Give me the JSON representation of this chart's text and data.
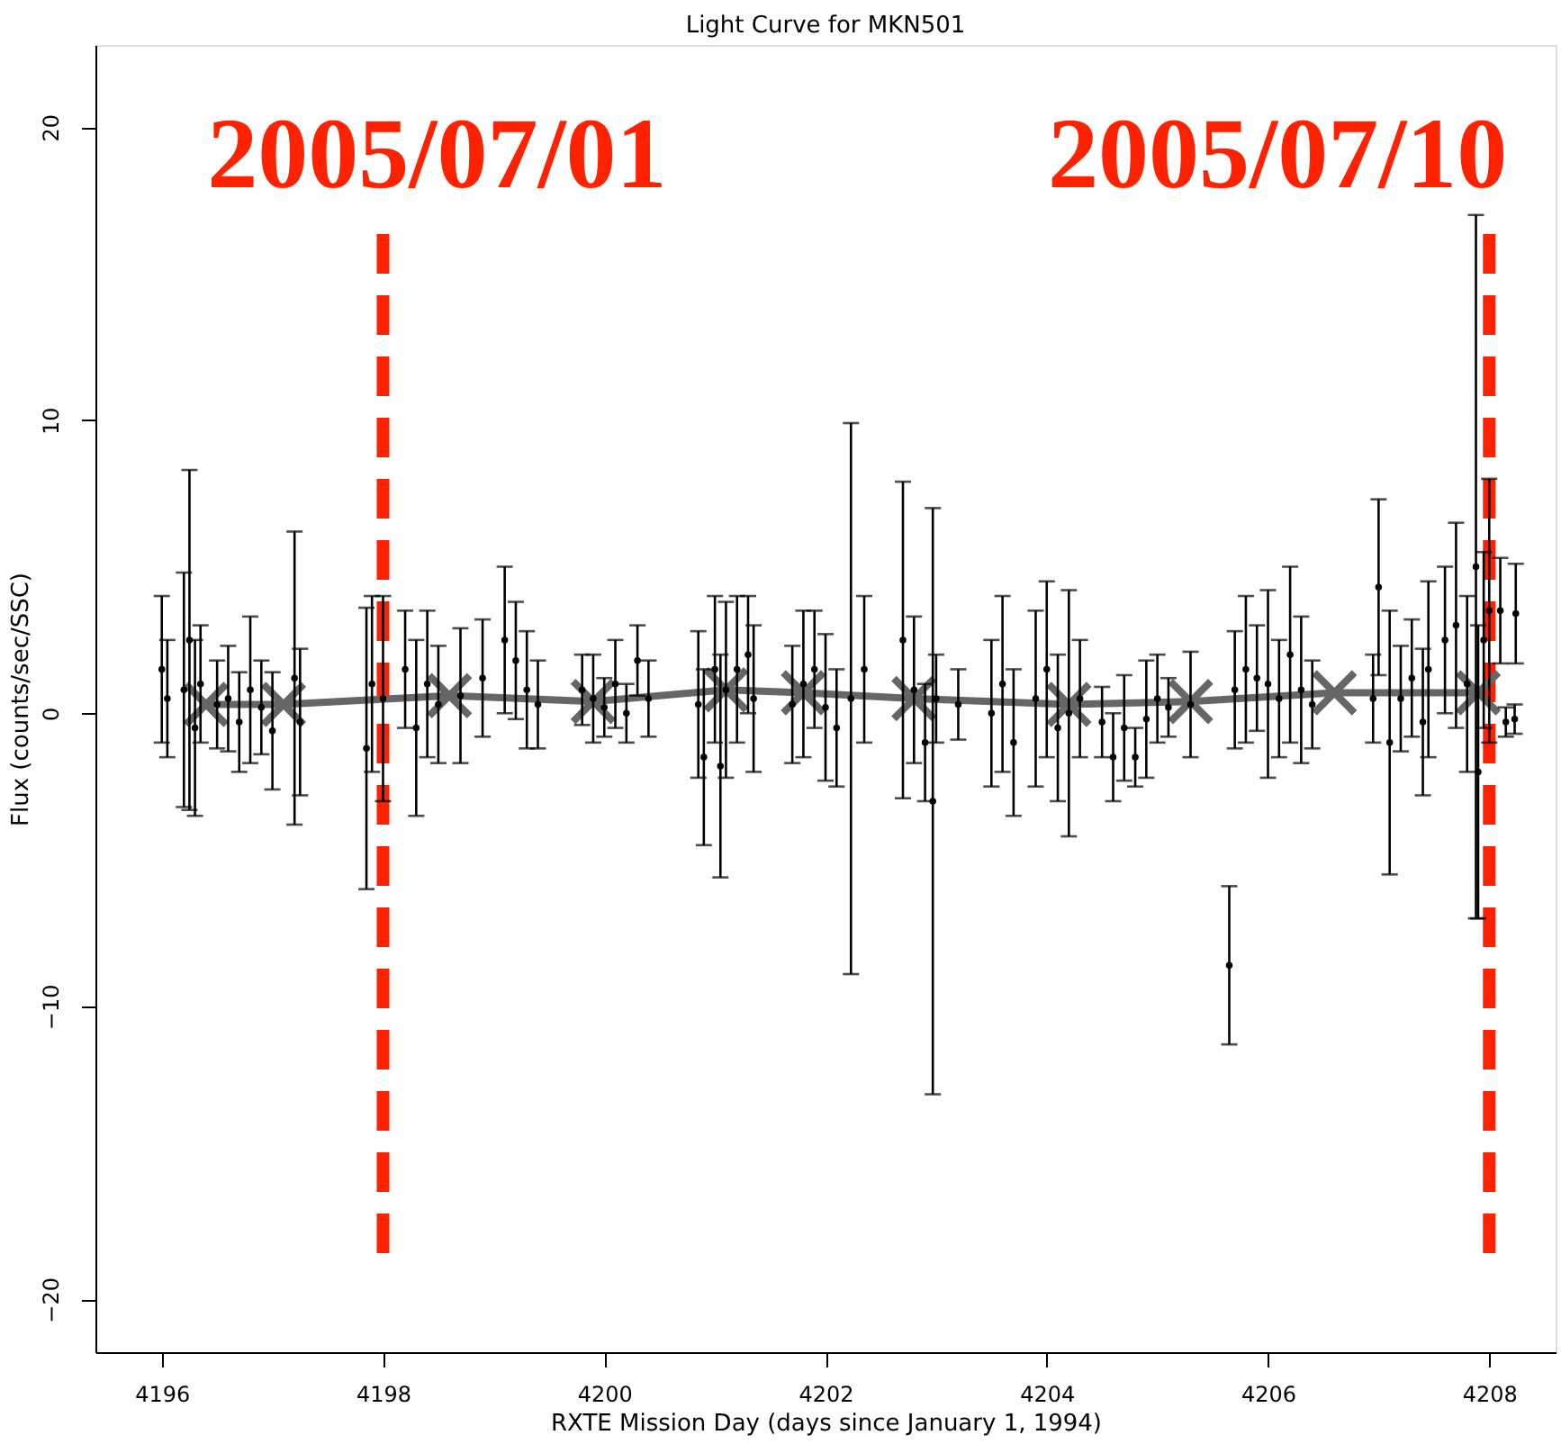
{
  "chart_data": {
    "type": "scatter",
    "title": "Light Curve for MKN501",
    "xlabel": "RXTE Mission Day (days since January 1, 1994)",
    "ylabel": "Flux (counts/sec/SSC)",
    "xlim": [
      4195.4,
      4208.6
    ],
    "ylim": [
      -21.8,
      22.8
    ],
    "xticks": [
      4196,
      4198,
      4200,
      4202,
      4204,
      4206,
      4208
    ],
    "yticks": [
      -20,
      -10,
      0,
      10,
      20
    ],
    "grid": false,
    "annotations": [
      "2005/07/01",
      "2005/07/10"
    ],
    "series": [
      {
        "color": "#000000",
        "x": [
          4196.0,
          4196.05,
          4196.2,
          4196.25,
          4196.3,
          4196.35,
          4196.5,
          4196.6,
          4196.7,
          4196.8,
          4196.9,
          4197.0,
          4197.2,
          4197.25,
          4197.85,
          4197.9,
          4198.0,
          4198.2,
          4198.3,
          4198.4,
          4198.5,
          4198.7,
          4198.9,
          4199.1,
          4199.2,
          4199.3,
          4199.4,
          4199.8,
          4199.9,
          4200.0,
          4200.1,
          4200.2,
          4200.3,
          4200.4,
          4200.85,
          4200.9,
          4201.0,
          4201.05,
          4201.1,
          4201.2,
          4201.3,
          4201.35,
          4201.7,
          4201.8,
          4201.9,
          4202.0,
          4202.1,
          4202.23,
          4202.35,
          4202.7,
          4202.8,
          4202.9,
          4202.97,
          4203.0,
          4203.2,
          4203.5,
          4203.6,
          4203.7,
          4203.9,
          4204.0,
          4204.1,
          4204.2,
          4204.3,
          4204.5,
          4204.6,
          4204.7,
          4204.8,
          4204.9,
          4205.0,
          4205.1,
          4205.3,
          4205.65,
          4205.7,
          4205.8,
          4205.9,
          4206.0,
          4206.1,
          4206.2,
          4206.3,
          4206.4,
          4206.95,
          4207.0,
          4207.1,
          4207.2,
          4207.3,
          4207.4,
          4207.45,
          4207.6,
          4207.7,
          4207.8,
          4207.88,
          4207.9,
          4207.95,
          4208.0,
          4208.1,
          4208.15,
          4208.23,
          4208.24
        ],
        "values": [
          1.5,
          0.5,
          0.8,
          2.5,
          -0.5,
          1.0,
          0.3,
          0.5,
          -0.3,
          0.8,
          0.2,
          -0.6,
          1.2,
          -0.3,
          -1.2,
          1.0,
          0.5,
          1.5,
          -0.5,
          1.0,
          0.3,
          0.6,
          1.2,
          2.5,
          1.8,
          0.8,
          0.3,
          0.8,
          0.5,
          0.2,
          1.0,
          0.0,
          1.8,
          0.5,
          0.3,
          -1.5,
          1.5,
          -1.8,
          0.8,
          1.5,
          2.0,
          0.5,
          0.3,
          1.0,
          1.5,
          0.2,
          -0.5,
          0.5,
          1.5,
          2.5,
          0.8,
          -1.0,
          -3.0,
          0.5,
          0.3,
          0.0,
          1.0,
          -1.0,
          0.5,
          1.5,
          -0.5,
          0.0,
          0.5,
          -0.3,
          -1.5,
          -0.5,
          -1.5,
          -0.2,
          0.5,
          0.2,
          0.3,
          -8.6,
          0.8,
          1.5,
          1.2,
          1.0,
          0.5,
          2.0,
          0.8,
          0.3,
          0.5,
          4.3,
          -1.0,
          0.5,
          1.2,
          -0.3,
          1.5,
          2.5,
          3.0,
          1.0,
          5.0,
          -2.0,
          2.5,
          3.5,
          3.5,
          -0.3,
          -0.2,
          3.4
        ],
        "errors": [
          2.5,
          2.0,
          4.0,
          5.8,
          3.0,
          2.0,
          1.5,
          1.8,
          1.7,
          2.5,
          1.6,
          2.0,
          5.0,
          2.5,
          4.8,
          3.0,
          3.5,
          2.0,
          3.0,
          2.5,
          2.0,
          2.3,
          2.0,
          2.5,
          2.0,
          2.0,
          1.5,
          1.2,
          1.5,
          1.0,
          1.5,
          1.0,
          1.2,
          1.3,
          2.5,
          3.0,
          2.5,
          3.8,
          3.0,
          2.5,
          2.0,
          2.5,
          2.0,
          2.5,
          2.0,
          2.5,
          2.0,
          9.4,
          2.5,
          5.4,
          2.5,
          2.0,
          10.0,
          1.5,
          1.2,
          2.5,
          3.0,
          2.5,
          3.0,
          3.0,
          2.5,
          4.2,
          2.0,
          1.2,
          1.5,
          1.8,
          1.0,
          2.0,
          1.5,
          1.0,
          1.8,
          2.7,
          2.0,
          2.5,
          1.8,
          3.2,
          2.0,
          3.0,
          2.5,
          1.5,
          1.5,
          3.0,
          4.5,
          1.8,
          2.0,
          2.5,
          3.0,
          2.5,
          3.5,
          3.0,
          12.0,
          5.0,
          3.0,
          4.5,
          1.8,
          0.5,
          0.5,
          1.7
        ]
      },
      {
        "type": "line",
        "color": "#666666",
        "marker": "cross",
        "x": [
          4196.4,
          4197.1,
          4198.6,
          4199.9,
          4201.1,
          4201.8,
          4202.8,
          4204.2,
          4205.3,
          4206.6,
          4207.9
        ],
        "values": [
          0.3,
          0.3,
          0.6,
          0.4,
          0.8,
          0.7,
          0.5,
          0.3,
          0.4,
          0.7,
          0.7
        ]
      }
    ],
    "ref_lines": [
      {
        "axis": "x",
        "value": 4198,
        "color": "#ff2200",
        "line_style": "dashed"
      },
      {
        "axis": "x",
        "value": 4208,
        "color": "#ff2200",
        "line_style": "dashed"
      }
    ]
  }
}
